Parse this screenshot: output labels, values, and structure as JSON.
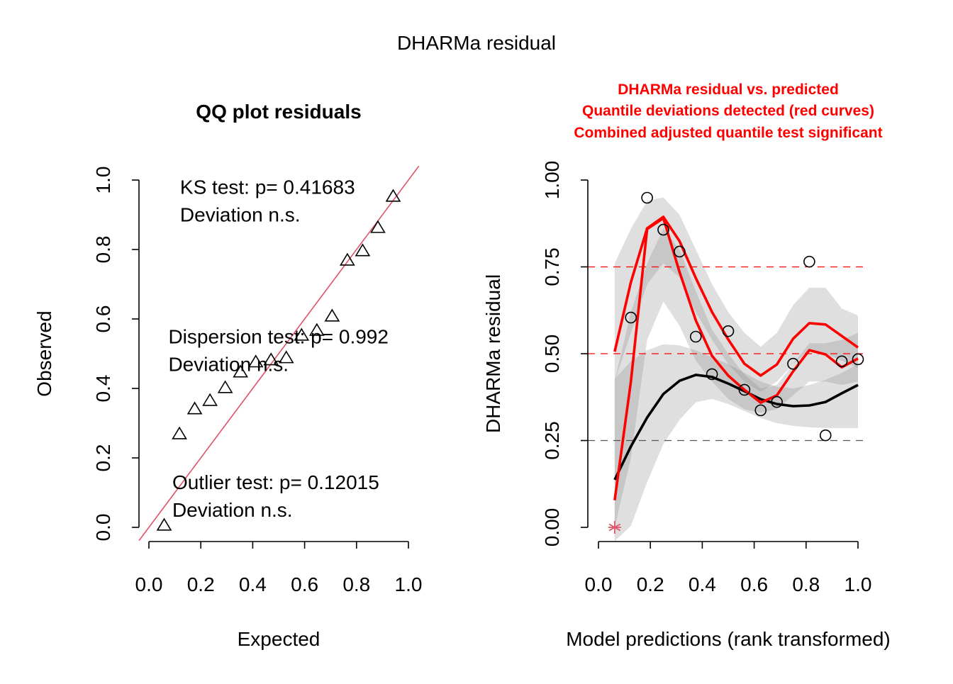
{
  "figure": {
    "title": "DHARMa residual"
  },
  "chart_data": [
    {
      "type": "scatter",
      "panel": "left",
      "title": "QQ plot residuals",
      "xlabel": "Expected",
      "ylabel": "Observed",
      "xlim": [
        0,
        1
      ],
      "ylim": [
        0,
        1
      ],
      "xticks": [
        "0.0",
        "0.2",
        "0.4",
        "0.6",
        "0.8",
        "1.0"
      ],
      "xtick_values": [
        0,
        0.2,
        0.4,
        0.6,
        0.8,
        1.0
      ],
      "yticks": [
        "0.0",
        "0.2",
        "0.4",
        "0.6",
        "0.8",
        "1.0"
      ],
      "ytick_values": [
        0,
        0.2,
        0.4,
        0.6,
        0.8,
        1.0
      ],
      "grid": false,
      "marker": "triangle",
      "reference_line": {
        "slope": 1,
        "intercept": 0,
        "color": "#DF536B"
      },
      "points": {
        "x": [
          0.0588,
          0.1176,
          0.1765,
          0.2353,
          0.2941,
          0.3529,
          0.4118,
          0.4706,
          0.5294,
          0.5882,
          0.6471,
          0.7059,
          0.7647,
          0.8235,
          0.8824,
          0.9412
        ],
        "y": [
          0.006,
          0.269,
          0.341,
          0.365,
          0.402,
          0.447,
          0.476,
          0.482,
          0.488,
          0.553,
          0.567,
          0.608,
          0.769,
          0.796,
          0.863,
          0.953
        ]
      },
      "annotations": [
        {
          "lines": [
            "KS test: p= 0.41683",
            "Deviation  n.s."
          ],
          "anchor_x": 0.12,
          "anchor_y": 0.96
        },
        {
          "lines": [
            "Dispersion test: p= 0.992",
            "Deviation  n.s."
          ],
          "anchor_x": 0.075,
          "anchor_y": 0.53
        },
        {
          "lines": [
            "Outlier test: p= 0.12015",
            "Deviation  n.s."
          ],
          "anchor_x": 0.09,
          "anchor_y": 0.11
        }
      ]
    },
    {
      "type": "scatter",
      "panel": "right",
      "title_lines": [
        "DHARMa residual vs. predicted",
        "Quantile deviations detected (red curves)",
        "Combined adjusted quantile test significant"
      ],
      "title_color": "#FF0000",
      "xlabel": "Model predictions (rank transformed)",
      "ylabel": "DHARMa residual",
      "xlim": [
        0,
        1
      ],
      "ylim": [
        0,
        1
      ],
      "xticks": [
        "0.0",
        "0.2",
        "0.4",
        "0.6",
        "0.8",
        "1.0"
      ],
      "xtick_values": [
        0,
        0.2,
        0.4,
        0.6,
        0.8,
        1.0
      ],
      "yticks": [
        "0.00",
        "0.25",
        "0.50",
        "0.75",
        "1.00"
      ],
      "ytick_values": [
        0,
        0.25,
        0.5,
        0.75,
        1.0
      ],
      "grid": false,
      "hlines": [
        {
          "y": 0.25,
          "color": "#555555",
          "style": "dashed"
        },
        {
          "y": 0.5,
          "color": "#FF0000",
          "style": "dashed"
        },
        {
          "y": 0.75,
          "color": "#FF0000",
          "style": "dashed"
        }
      ],
      "points": {
        "x": [
          0.125,
          0.1875,
          0.25,
          0.3125,
          0.375,
          0.4375,
          0.5,
          0.5625,
          0.625,
          0.6875,
          0.75,
          0.8125,
          0.875,
          0.9375,
          1.0
        ],
        "y": [
          0.604,
          0.949,
          0.857,
          0.794,
          0.549,
          0.441,
          0.565,
          0.396,
          0.337,
          0.361,
          0.471,
          0.765,
          0.265,
          0.478,
          0.484
        ],
        "marker": "circle"
      },
      "outliers": {
        "x": [
          0.0625
        ],
        "y": [
          0.0
        ],
        "marker": "asterisk",
        "color": "#DF536B"
      },
      "quantile_x": [
        0.0625,
        0.125,
        0.1875,
        0.25,
        0.3125,
        0.375,
        0.4375,
        0.5,
        0.5625,
        0.625,
        0.6875,
        0.75,
        0.8125,
        0.875,
        0.9375,
        1.0
      ],
      "series": [
        {
          "name": "q0.25",
          "color": "#000000",
          "values": [
            0.137,
            0.233,
            0.316,
            0.384,
            0.422,
            0.439,
            0.433,
            0.414,
            0.392,
            0.369,
            0.355,
            0.349,
            0.351,
            0.361,
            0.386,
            0.41
          ],
          "band_upper": [
            0.427,
            0.478,
            0.51,
            0.527,
            0.524,
            0.51,
            0.49,
            0.47,
            0.445,
            0.42,
            0.405,
            0.4,
            0.41,
            0.425,
            0.445,
            0.47
          ],
          "band_lower": [
            -0.04,
            0.004,
            0.13,
            0.24,
            0.31,
            0.36,
            0.37,
            0.355,
            0.335,
            0.315,
            0.3,
            0.292,
            0.288,
            0.286,
            0.286,
            0.286
          ]
        },
        {
          "name": "q0.5",
          "color": "#FF0000",
          "values": [
            0.078,
            0.42,
            0.859,
            0.89,
            0.735,
            0.596,
            0.494,
            0.437,
            0.396,
            0.359,
            0.38,
            0.449,
            0.51,
            0.498,
            0.461,
            0.486
          ],
          "band_upper": [
            0.42,
            0.62,
            0.76,
            0.86,
            0.8,
            0.68,
            0.57,
            0.5,
            0.44,
            0.4,
            0.41,
            0.47,
            0.53,
            0.53,
            0.54,
            0.56
          ],
          "band_lower": [
            0.0,
            0.2,
            0.54,
            0.65,
            0.58,
            0.48,
            0.42,
            0.37,
            0.34,
            0.33,
            0.34,
            0.38,
            0.42,
            0.42,
            0.41,
            0.42
          ]
        },
        {
          "name": "q0.75",
          "color": "#FF0000",
          "values": [
            0.506,
            0.706,
            0.861,
            0.894,
            0.824,
            0.718,
            0.62,
            0.541,
            0.471,
            0.437,
            0.469,
            0.543,
            0.588,
            0.584,
            0.551,
            0.518
          ],
          "band_upper": [
            0.76,
            0.86,
            0.94,
            0.95,
            0.9,
            0.8,
            0.7,
            0.62,
            0.56,
            0.52,
            0.56,
            0.64,
            0.69,
            0.69,
            0.63,
            0.61
          ],
          "band_lower": [
            0.42,
            0.56,
            0.7,
            0.76,
            0.72,
            0.62,
            0.54,
            0.47,
            0.42,
            0.39,
            0.42,
            0.47,
            0.51,
            0.5,
            0.48,
            0.46
          ]
        }
      ]
    }
  ]
}
